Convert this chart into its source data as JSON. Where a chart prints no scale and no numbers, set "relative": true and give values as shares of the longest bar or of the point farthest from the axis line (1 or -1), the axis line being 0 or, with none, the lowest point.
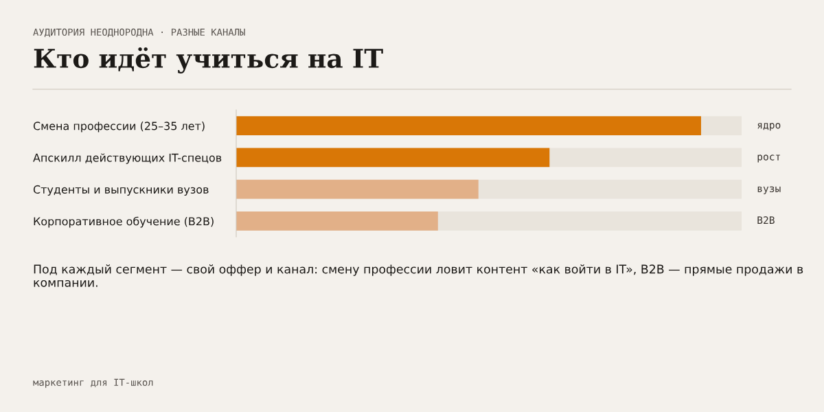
{
  "chart_data": {
    "type": "bar",
    "orientation": "horizontal",
    "relative": true,
    "subtitle": "АУДИТОРИЯ НЕОДНОРОДНА · РАЗНЫЕ КАНАЛЫ",
    "title": "Кто идёт учиться на IT",
    "categories": [
      "Смена профессии (25–35 лет)",
      "Апскилл действующих IT-спецов",
      "Студенты и выпускники вузов",
      "Корпоративное обучение (B2B)"
    ],
    "values": [
      1,
      0.674,
      0.521,
      0.434
    ],
    "colors": [
      "#d97706",
      "#d97706",
      "#e2b088",
      "#e2b088"
    ],
    "annotations": [
      "ядро",
      "рост",
      "вузы",
      "B2B",
      "Под каждый сегмент — свой оффер и канал: смену профессии ловит контент «как войти в IT», B2B — прямые продажи в компании.",
      "маркетинг для IT-школ"
    ],
    "grid": false,
    "legend": false
  }
}
